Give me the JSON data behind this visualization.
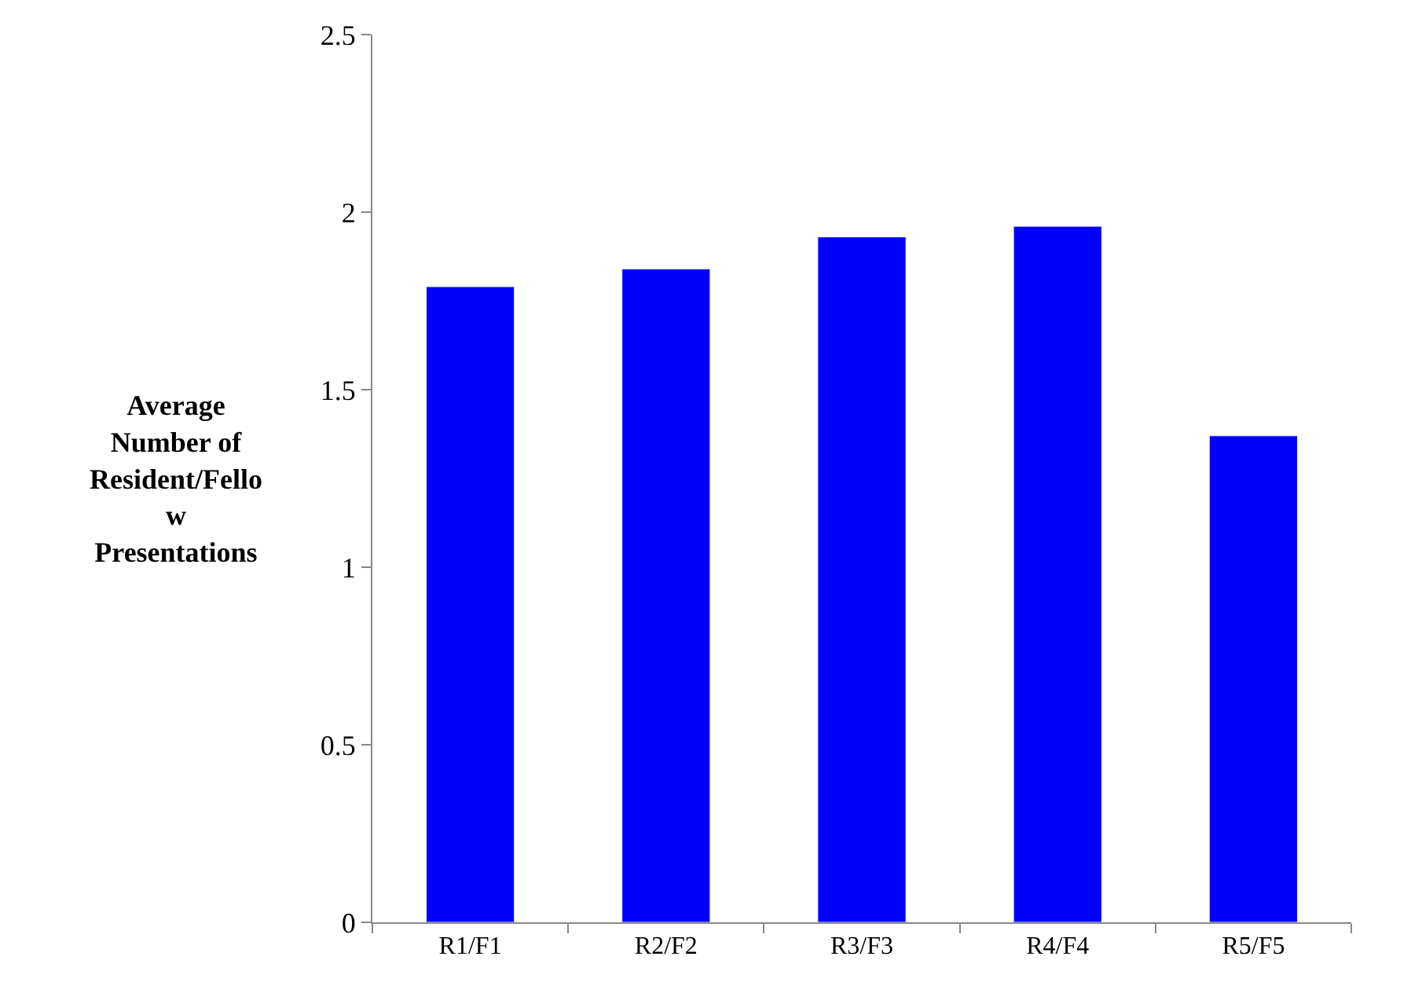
{
  "chart_data": {
    "type": "bar",
    "ylabel": "Average\nNumber of\nResident/Fello\nw\nPresentations",
    "categories": [
      "R1/F1",
      "R2/F2",
      "R3/F3",
      "R4/F4",
      "R5/F5"
    ],
    "values": [
      1.79,
      1.84,
      1.93,
      1.96,
      1.37
    ],
    "color": "#0000ff",
    "ylim": [
      0,
      2.5
    ],
    "yticks": [
      0,
      0.5,
      1,
      1.5,
      2,
      2.5
    ],
    "grid": false,
    "legend": false
  }
}
